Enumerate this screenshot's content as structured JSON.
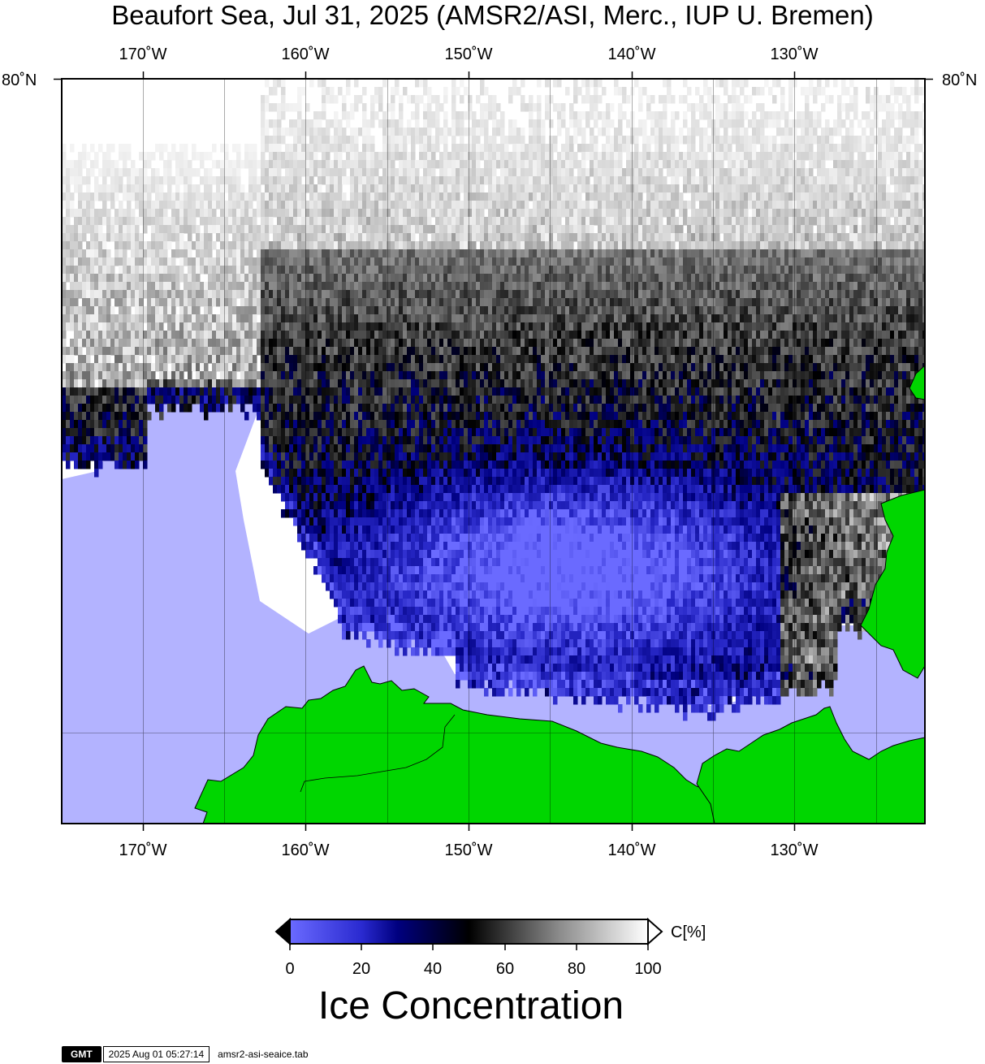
{
  "title": "Beaufort Sea, Jul 31, 2025 (AMSR2/ASI, Merc., IUP U. Bremen)",
  "map": {
    "longitude_ticks": [
      "170˚W",
      "160˚W",
      "150˚W",
      "140˚W",
      "130˚W"
    ],
    "latitude_ticks": [
      "80˚N"
    ],
    "colors": {
      "open_water": "#b3b3ff",
      "land": "#00d600",
      "land_outline": "#000000",
      "ice_low": "#000080",
      "ice_mid": "#000000",
      "ice_high": "#ffffff"
    }
  },
  "colorbar": {
    "ticks": [
      "0",
      "20",
      "40",
      "60",
      "80",
      "100"
    ],
    "unit": "C[%]",
    "title": "Ice Concentration",
    "stops": [
      "#6a6aff",
      "#000080",
      "#000000",
      "#808080",
      "#ffffff"
    ]
  },
  "footer": {
    "logo": "GMT",
    "timestamp": "2025 Aug 01 05:27:14",
    "filename": "amsr2-asi-seaice.tab"
  }
}
